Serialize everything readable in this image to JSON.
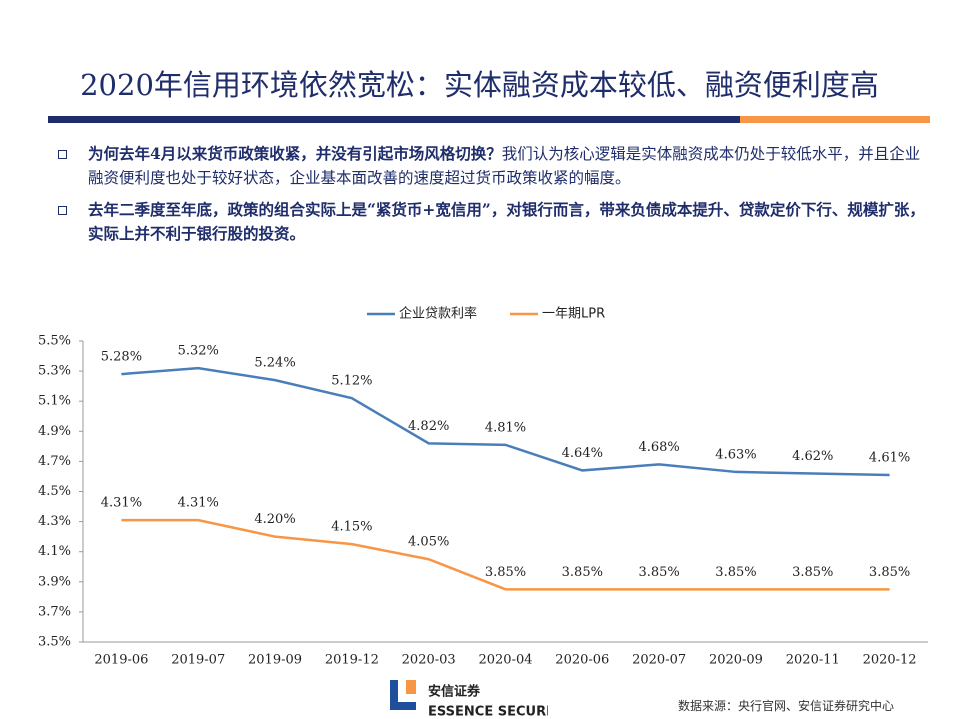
{
  "header": {
    "title": "2020年信用环境依然宽松：实体融资成本较低、融资便利度高"
  },
  "bullets": [
    {
      "bold": "为何去年4月以来货币政策收紧，并没有引起市场风格切换？",
      "text": "我们认为核心逻辑是实体融资成本仍处于较低水平，并且企业融资便利度也处于较好状态，企业基本面改善的速度超过货币政策收紧的幅度。"
    },
    {
      "bold": "去年二季度至年底，政策的组合实际上是“紧货币+宽信用”，对银行而言，带来负债成本提升、贷款定价下行、规模扩张，实际上并不利于银行股的投资。"
    }
  ],
  "chart_data": {
    "type": "line",
    "categories": [
      "2019-06",
      "2019-07",
      "2019-09",
      "2019-12",
      "2020-03",
      "2020-04",
      "2020-06",
      "2020-07",
      "2020-09",
      "2020-11",
      "2020-12"
    ],
    "series": [
      {
        "name": "企业贷款利率",
        "color": "#4a7ebb",
        "values": [
          5.28,
          5.32,
          5.24,
          5.12,
          4.82,
          4.81,
          4.64,
          4.68,
          4.63,
          4.62,
          4.61
        ],
        "value_labels": [
          "5.28%",
          "5.32%",
          "5.24%",
          "5.12%",
          "4.82%",
          "4.81%",
          "4.64%",
          "4.68%",
          "4.63%",
          "4.62%",
          "4.61%"
        ]
      },
      {
        "name": "一年期LPR",
        "color": "#f79646",
        "values": [
          4.31,
          4.31,
          4.2,
          4.15,
          4.05,
          3.85,
          3.85,
          3.85,
          3.85,
          3.85,
          3.85
        ],
        "value_labels": [
          "4.31%",
          "4.31%",
          "4.20%",
          "4.15%",
          "4.05%",
          "3.85%",
          "3.85%",
          "3.85%",
          "3.85%",
          "3.85%",
          "3.85%"
        ]
      }
    ],
    "ylim": [
      3.5,
      5.5
    ],
    "yticks": [
      {
        "value": 3.5,
        "label": "3.5%"
      },
      {
        "value": 3.7,
        "label": "3.7%"
      },
      {
        "value": 3.9,
        "label": "3.9%"
      },
      {
        "value": 4.1,
        "label": "4.1%"
      },
      {
        "value": 4.3,
        "label": "4.3%"
      },
      {
        "value": 4.5,
        "label": "4.5%"
      },
      {
        "value": 4.7,
        "label": "4.7%"
      },
      {
        "value": 4.9,
        "label": "4.9%"
      },
      {
        "value": 5.1,
        "label": "5.1%"
      },
      {
        "value": 5.3,
        "label": "5.3%"
      },
      {
        "value": 5.5,
        "label": "5.5%"
      }
    ],
    "grid": false,
    "legend": "top"
  },
  "footer": {
    "logo_name": "安信证券",
    "logo_sub": "ESSENCE SECURITIES",
    "source": "数据来源：央行官网、安信证券研究中心"
  }
}
